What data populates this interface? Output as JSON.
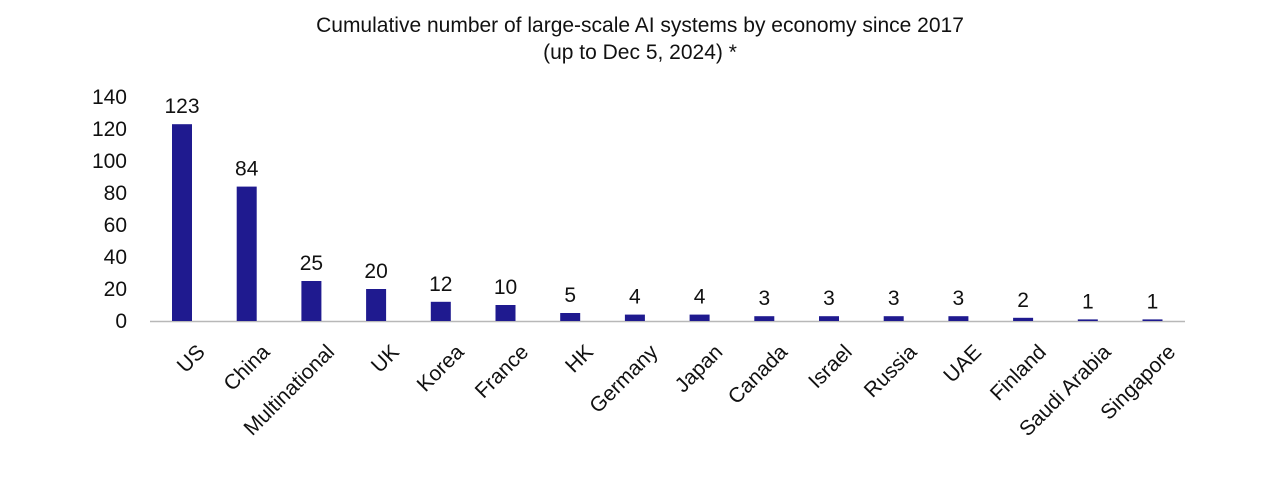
{
  "chart_data": {
    "type": "bar",
    "title": "Cumulative number of large-scale AI systems by economy since 2017",
    "subtitle": "(up to Dec 5, 2024) *",
    "xlabel": "",
    "ylabel": "",
    "ylim": [
      0,
      140
    ],
    "yticks": [
      0,
      20,
      40,
      60,
      80,
      100,
      120,
      140
    ],
    "grid": false,
    "legend": "none",
    "bar_color": "#1f1a8f",
    "axis_color": "#b8b8b8",
    "categories": [
      "US",
      "China",
      "Multinational",
      "UK",
      "Korea",
      "France",
      "HK",
      "Germany",
      "Japan",
      "Canada",
      "Israel",
      "Russia",
      "UAE",
      "Finland",
      "Saudi Arabia",
      "Singapore"
    ],
    "values": [
      123,
      84,
      25,
      20,
      12,
      10,
      5,
      4,
      4,
      3,
      3,
      3,
      3,
      2,
      1,
      1
    ],
    "data_labels": [
      "123",
      "84",
      "25",
      "20",
      "12",
      "10",
      "5",
      "4",
      "4",
      "3",
      "3",
      "3",
      "3",
      "2",
      "1",
      "1"
    ]
  }
}
